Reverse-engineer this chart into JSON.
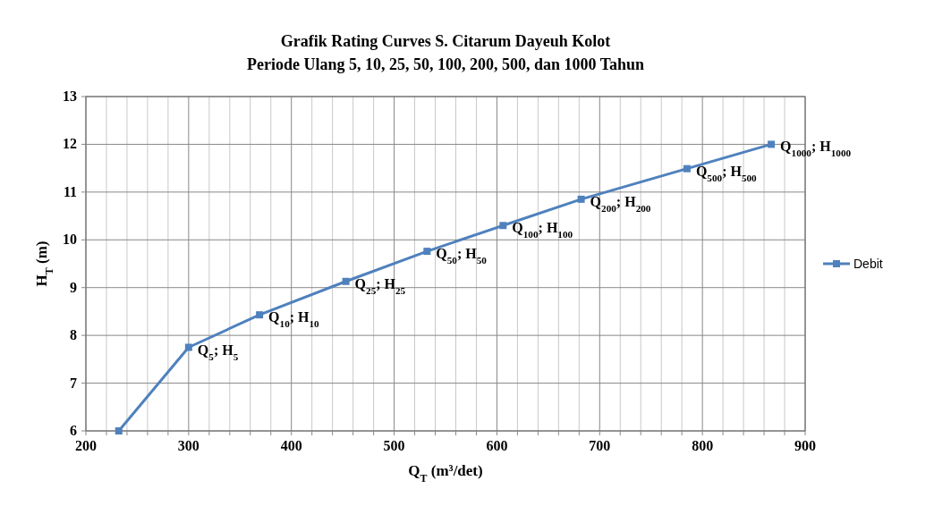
{
  "chart_data": {
    "type": "line",
    "title": "Grafik Rating Curves S. Citarum  Dayeuh Kolot",
    "subtitle": "Periode Ulang 5, 10, 25, 50, 100, 200, 500, dan 1000 Tahun",
    "xlabel": "Q$_{T}$ (m³/det)",
    "ylabel": "H$_{T}$ (m)",
    "xlim": [
      200,
      900
    ],
    "ylim": [
      6,
      13
    ],
    "xticks": [
      200,
      {
        "value": 220,
        "label": null
      },
      {
        "value": 240,
        "label": null
      },
      {
        "value": 260,
        "label": null
      },
      {
        "value": 280,
        "label": null
      },
      300,
      {
        "value": 320,
        "label": null
      },
      {
        "value": 340,
        "label": null
      },
      {
        "value": 360,
        "label": null
      },
      {
        "value": 380,
        "label": null
      },
      400,
      {
        "value": 420,
        "label": null
      },
      {
        "value": 440,
        "label": null
      },
      {
        "value": 460,
        "label": null
      },
      {
        "value": 480,
        "label": null
      },
      500,
      {
        "value": 520,
        "label": null
      },
      {
        "value": 540,
        "label": null
      },
      {
        "value": 560,
        "label": null
      },
      {
        "value": 580,
        "label": null
      },
      600,
      {
        "value": 620,
        "label": null
      },
      {
        "value": 640,
        "label": null
      },
      {
        "value": 660,
        "label": null
      },
      {
        "value": 680,
        "label": null
      },
      700,
      {
        "value": 720,
        "label": null
      },
      {
        "value": 740,
        "label": null
      },
      {
        "value": 760,
        "label": null
      },
      {
        "value": 780,
        "label": null
      },
      800,
      {
        "value": 820,
        "label": null
      },
      {
        "value": 840,
        "label": null
      },
      {
        "value": 860,
        "label": null
      },
      {
        "value": 880,
        "label": null
      },
      900
    ],
    "yticks": [
      6,
      7,
      8,
      9,
      10,
      11,
      12,
      13
    ],
    "grid": true,
    "legend": "right",
    "marker": "square",
    "line_style": "solid",
    "series": [
      {
        "name": "Debit",
        "color": "#4f81bd",
        "x": [
          232,
          300,
          369,
          453,
          532,
          606,
          682,
          785,
          867
        ],
        "values": [
          6,
          7.75,
          8.43,
          9.13,
          9.76,
          10.3,
          10.85,
          11.49,
          12.0
        ]
      }
    ],
    "annotations": [
      {
        "text": "Q$_{5}$; H$_{5}$",
        "x": 300,
        "y": 7.75
      },
      {
        "text": "Q$_{10}$; H$_{10}$",
        "x": 369,
        "y": 8.43
      },
      {
        "text": "Q$_{25}$; H$_{25}$",
        "x": 453,
        "y": 9.13
      },
      {
        "text": "Q$_{50}$; H$_{50}$",
        "x": 532,
        "y": 9.76
      },
      {
        "text": "Q$_{100}$; H$_{100}$",
        "x": 606,
        "y": 10.3
      },
      {
        "text": "Q$_{200}$; H$_{200}$",
        "x": 682,
        "y": 10.85
      },
      {
        "text": "Q$_{500}$; H$_{500}$",
        "x": 785,
        "y": 11.49
      },
      {
        "text": "Q$_{1000}$; H$_{1000}$",
        "x": 867,
        "y": 12.0
      }
    ]
  }
}
